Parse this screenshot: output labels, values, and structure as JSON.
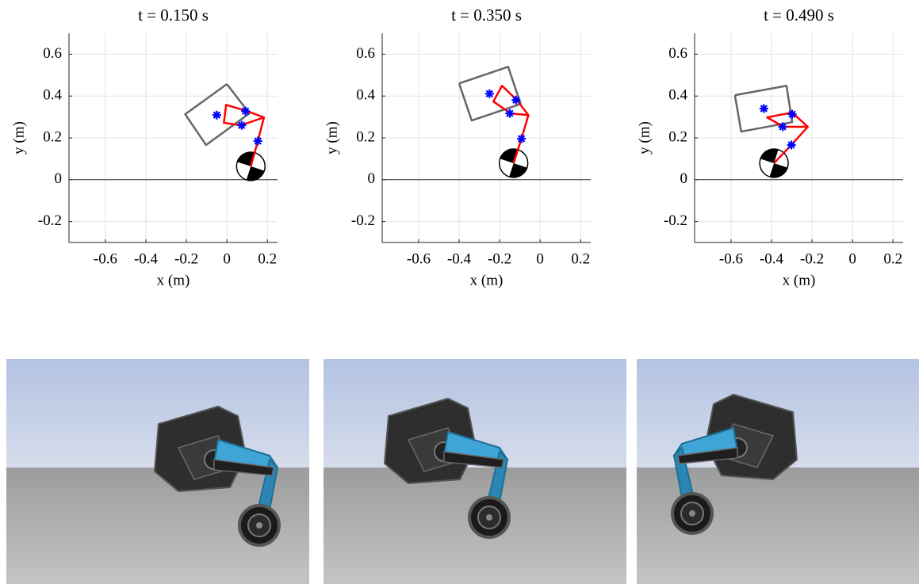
{
  "chart_data": [
    {
      "type": "line",
      "title": "t = 0.150 s",
      "xlabel": "x (m)",
      "ylabel": "y (m)",
      "xlim": [
        -0.78,
        0.25
      ],
      "ylim": [
        -0.3,
        0.7
      ],
      "xticks": [
        -0.6,
        -0.4,
        -0.2,
        0,
        0.2
      ],
      "yticks": [
        -0.2,
        0,
        0.2,
        0.4,
        0.6
      ],
      "grid": true,
      "baseline": 0,
      "body": {
        "color": "#666666",
        "x": [
          0,
          0.111,
          -0.103,
          -0.206,
          0
        ],
        "y": [
          0.457,
          0.317,
          0.166,
          0.313,
          0.457
        ]
      },
      "linkage": {
        "color": "#ff0000",
        "x": [
          0.118,
          0.153,
          0.183,
          0.069,
          -0.015,
          -0.004,
          0.099,
          0.183
        ],
        "y": [
          0.064,
          0.185,
          0.298,
          0.26,
          0.272,
          0.358,
          0.328,
          0.298
        ]
      },
      "joints": {
        "color": "#0000ff",
        "x": [
          -0.05,
          0.092,
          0.073,
          0.153
        ],
        "y": [
          0.309,
          0.328,
          0.26,
          0.185
        ]
      },
      "wheel": {
        "x": 0.118,
        "y": 0.064,
        "r": 0.068
      }
    },
    {
      "type": "line",
      "title": "t = 0.350 s",
      "xlabel": "x (m)",
      "ylabel": "y (m)",
      "xlim": [
        -0.78,
        0.25
      ],
      "ylim": [
        -0.3,
        0.7
      ],
      "xticks": [
        -0.6,
        -0.4,
        -0.2,
        0,
        0.2
      ],
      "yticks": [
        -0.2,
        0,
        0.2,
        0.4,
        0.6
      ],
      "grid": true,
      "baseline": 0,
      "body": {
        "color": "#666666",
        "x": [
          -0.4,
          -0.158,
          -0.096,
          -0.338,
          -0.4
        ],
        "y": [
          0.46,
          0.54,
          0.362,
          0.283,
          0.46
        ]
      },
      "linkage": {
        "color": "#ff0000",
        "x": [
          -0.131,
          -0.092,
          -0.058,
          -0.115,
          -0.188,
          -0.231,
          -0.146,
          -0.058
        ],
        "y": [
          0.079,
          0.196,
          0.309,
          0.381,
          0.449,
          0.374,
          0.317,
          0.309
        ]
      },
      "joints": {
        "color": "#0000ff",
        "x": [
          -0.25,
          -0.119,
          -0.15,
          -0.092
        ],
        "y": [
          0.411,
          0.381,
          0.317,
          0.196
        ]
      },
      "wheel": {
        "x": -0.131,
        "y": 0.079,
        "r": 0.068
      }
    },
    {
      "type": "line",
      "title": "t = 0.490 s",
      "xlabel": "x (m)",
      "ylabel": "y (m)",
      "xlim": [
        -0.78,
        0.25
      ],
      "ylim": [
        -0.3,
        0.7
      ],
      "xticks": [
        -0.6,
        -0.4,
        -0.2,
        0,
        0.2
      ],
      "yticks": [
        -0.2,
        0,
        0.2,
        0.4,
        0.6
      ],
      "grid": true,
      "baseline": 0,
      "body": {
        "color": "#666666",
        "x": [
          -0.581,
          -0.326,
          -0.298,
          -0.55,
          -0.581
        ],
        "y": [
          0.404,
          0.449,
          0.275,
          0.23,
          0.404
        ]
      },
      "linkage": {
        "color": "#ff0000",
        "x": [
          -0.388,
          -0.302,
          -0.221,
          -0.298,
          -0.422,
          -0.341,
          -0.221
        ],
        "y": [
          0.079,
          0.166,
          0.253,
          0.321,
          0.298,
          0.253,
          0.253
        ]
      },
      "joints": {
        "color": "#0000ff",
        "x": [
          -0.438,
          -0.298,
          -0.345,
          -0.302
        ],
        "y": [
          0.34,
          0.313,
          0.253,
          0.166
        ]
      },
      "wheel": {
        "x": -0.388,
        "y": 0.079,
        "r": 0.068
      }
    }
  ]
}
